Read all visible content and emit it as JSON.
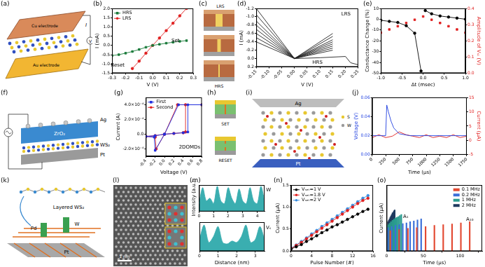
{
  "chart_data": [
    {
      "panel_label": "(b)",
      "type": "line",
      "xlabel": "V (V)",
      "ylabel": "I (mA)",
      "xlim": [
        -0.3,
        0.3
      ],
      "xticks": [
        -0.3,
        -0.2,
        -0.1,
        {
          "value": 0,
          "label": "0.0"
        },
        0.1,
        0.2,
        0.3
      ],
      "ylim": [
        -1.5,
        2.0
      ],
      "yticks": [
        -1.5,
        {
          "value": -1,
          "label": "-1.0"
        },
        -0.5,
        {
          "value": 0,
          "label": "0.0"
        },
        0.5,
        {
          "value": 1,
          "label": "1.0"
        },
        1.5,
        {
          "value": 2,
          "label": "2.0"
        }
      ],
      "grid": false,
      "legend": "upper left",
      "annotations": [
        "Set",
        "Reset"
      ],
      "series": [
        {
          "name": "HRS",
          "color": "#1a7a3a",
          "marker": "square",
          "x": [
            -0.3,
            -0.25,
            -0.2,
            -0.15,
            -0.1,
            -0.05,
            0,
            0.05,
            0.1,
            0.15,
            0.2,
            0.25
          ],
          "values": [
            -0.55,
            -0.5,
            -0.42,
            -0.33,
            -0.22,
            -0.1,
            0,
            0.06,
            0.12,
            0.17,
            0.22,
            0.26
          ]
        },
        {
          "name": "LRS",
          "color": "#e02020",
          "marker": "circle",
          "x": [
            -0.15,
            -0.1,
            -0.05,
            0,
            0.05,
            0.1,
            0.15,
            0.2,
            0.25
          ],
          "values": [
            -1.25,
            -0.85,
            -0.42,
            0,
            0.4,
            0.8,
            1.2,
            1.6,
            2.0
          ]
        }
      ]
    },
    {
      "panel_label": "(d)",
      "type": "line",
      "xlabel": "V (V)",
      "ylabel": "I (mA)",
      "xlim": [
        -0.15,
        0.25
      ],
      "xticks": [
        -0.15,
        {
          "value": -0.1,
          "label": "-0.10"
        },
        -0.05,
        {
          "value": 0,
          "label": "0.00"
        },
        0.05,
        {
          "value": 0.1,
          "label": "0.10"
        },
        0.15,
        {
          "value": 0.2,
          "label": "0.20"
        },
        0.25
      ],
      "ylim": [
        0.2,
        -1.2
      ],
      "yticks": [
        0.2,
        {
          "value": 0,
          "label": "0.0"
        },
        -0.2,
        -0.4,
        -0.6,
        -0.8,
        {
          "value": -1,
          "label": "-1.0"
        },
        -1.2
      ],
      "grid": false,
      "annotations": [
        "LRS",
        "HRS"
      ],
      "series": [
        {
          "color": "#222222",
          "x": [
            -0.15,
            0,
            0.15
          ],
          "values": [
            -1.2,
            0,
            -0.6
          ]
        },
        {
          "color": "#222222",
          "x": [
            -0.15,
            0,
            0.15
          ],
          "values": [
            -1.05,
            0,
            -0.53
          ]
        },
        {
          "color": "#222222",
          "x": [
            -0.15,
            0,
            0.15
          ],
          "values": [
            -0.9,
            0,
            -0.45
          ]
        },
        {
          "color": "#222222",
          "x": [
            -0.15,
            0,
            0.15
          ],
          "values": [
            -0.8,
            0,
            -0.4
          ]
        },
        {
          "color": "#222222",
          "x": [
            -0.15,
            0,
            0.15
          ],
          "values": [
            -0.7,
            0,
            -0.35
          ]
        },
        {
          "color": "#222222",
          "x": [
            -0.15,
            0,
            0.15
          ],
          "values": [
            -0.6,
            0,
            -0.3
          ]
        },
        {
          "color": "#222222",
          "x": [
            -0.15,
            0,
            0.15
          ],
          "values": [
            -0.5,
            0,
            -0.25
          ]
        },
        {
          "color": "#222222",
          "x": [
            -0.15,
            0,
            0.15
          ],
          "values": [
            -0.4,
            0,
            -0.2
          ]
        },
        {
          "color": "#222222",
          "x": [
            0,
            0.1,
            0.2,
            0.22,
            0.25
          ],
          "values": [
            0,
            -0.02,
            -0.05,
            0.1,
            0.15
          ]
        }
      ]
    },
    {
      "panel_label": "(e)",
      "type": "line",
      "xlabel": "Δt (msec)",
      "ylabel": "Conductance Change (%)",
      "y2label": "Amplitude of Vₛₜ (V)",
      "xlim": [
        -1,
        1
      ],
      "xticks": [
        {
          "value": -1,
          "label": "-1.0"
        },
        -0.5,
        {
          "value": 0,
          "label": "0.0"
        },
        0.5,
        {
          "value": 1,
          "label": "1.0"
        }
      ],
      "ylim": [
        -50,
        10
      ],
      "yticks": [
        -50,
        -40,
        -30,
        -20,
        -10,
        0,
        10
      ],
      "y2lim": [
        0,
        0.4
      ],
      "y2ticks": [
        {
          "value": 0,
          "label": "0.0"
        },
        0.1,
        0.2,
        0.3,
        0.4
      ],
      "grid": false,
      "series": [
        {
          "color": "#000000",
          "marker": "circle",
          "x": [
            -1,
            -0.8,
            -0.6,
            -0.4,
            -0.2,
            -0.05,
            0,
            0.05,
            0.2,
            0.4,
            0.6,
            0.8,
            1
          ],
          "values": [
            -1,
            -2,
            -3,
            -6,
            -13,
            -48,
            null,
            8,
            5,
            3,
            2,
            1,
            0
          ]
        },
        {
          "color": "#e02020",
          "marker": "square",
          "line_style": "none",
          "axis": "y2",
          "x": [
            -1,
            -0.8,
            -0.6,
            -0.4,
            -0.2,
            0,
            0.2,
            0.4,
            0.6,
            0.8,
            1
          ],
          "values": [
            0.25,
            0.27,
            0.29,
            0.31,
            0.33,
            0.35,
            0.33,
            0.31,
            0.29,
            0.27,
            0.25
          ]
        }
      ]
    },
    {
      "panel_label": "(g)",
      "type": "line",
      "xlabel": "Voltage (V)",
      "ylabel": "Current (A)",
      "xlim": [
        -0.4,
        0.8
      ],
      "xticks": [
        -0.4,
        -0.2,
        {
          "value": 0,
          "label": "0.0"
        },
        0.2,
        0.4,
        0.6,
        0.8
      ],
      "ylim": [
        -0.0003,
        0.0005
      ],
      "yticks": [
        {
          "value": -0.0002,
          "label": "-2.0×10⁻⁴"
        },
        {
          "value": 0,
          "label": "0.0"
        },
        {
          "value": 0.0002,
          "label": "2.0×10⁻⁴"
        },
        {
          "value": 0.0004,
          "label": "4.0×10⁻⁴"
        }
      ],
      "grid": false,
      "legend": "upper left",
      "annotations": [
        "2DOMDs"
      ],
      "series": [
        {
          "name": "First",
          "color": "#2030e0",
          "marker": "square",
          "x": [
            -0.4,
            -0.2,
            0,
            0.2,
            0.4,
            0.5,
            0.5,
            0.8,
            0.3,
            0,
            -0.2,
            -0.22,
            -0.4
          ],
          "values": [
            -3e-05,
            -2e-05,
            0,
            1e-05,
            2e-05,
            3e-05,
            0.0004,
            0.0004,
            0.0004,
            0,
            -0.00022,
            -4e-05,
            -3e-05
          ]
        },
        {
          "name": "Second",
          "color": "#e02020",
          "marker": "circle",
          "x": [
            -0.4,
            -0.2,
            0,
            0.2,
            0.4,
            0.45,
            0.45,
            0.8,
            0.28,
            0,
            -0.18,
            -0.2,
            -0.4
          ],
          "values": [
            -3e-05,
            -2e-05,
            0,
            1e-05,
            2e-05,
            3e-05,
            0.0004,
            0.0004,
            0.0004,
            0,
            -0.0002,
            -4e-05,
            -3e-05
          ]
        }
      ]
    },
    {
      "panel_label": "(j)",
      "type": "line",
      "xlabel": "Time (μs)",
      "ylabel": "Voltage (V)",
      "y2label": "Current (μA)",
      "xlim": [
        0,
        1750
      ],
      "xticks": [
        0,
        250,
        500,
        750,
        1000,
        1250,
        1500,
        1750
      ],
      "ylim": [
        0,
        0.06
      ],
      "yticks": [
        {
          "value": 0,
          "label": "0.00"
        },
        0.02,
        0.04,
        0.06
      ],
      "y2lim": [
        -5,
        15
      ],
      "y2ticks": [
        -5,
        0,
        5,
        10,
        15
      ],
      "grid": false,
      "series": [
        {
          "color": "#2040e0",
          "x": [
            0,
            100,
            200,
            250,
            270,
            300,
            350,
            400,
            500,
            700,
            1000,
            1250,
            1500,
            1750
          ],
          "values": [
            0.02,
            0.02,
            0.02,
            0.02,
            0.052,
            0.045,
            0.035,
            0.028,
            0.022,
            0.02,
            0.02,
            0.02,
            0.02,
            0.02
          ]
        },
        {
          "color": "#e02020",
          "axis": "y2",
          "x": [
            0,
            125,
            250,
            375,
            500,
            625,
            750,
            875,
            1000,
            1125,
            1250,
            1375,
            1500,
            1625,
            1750
          ],
          "values": [
            1,
            2,
            1,
            1.5,
            3,
            2,
            1.5,
            1,
            2,
            1,
            1.5,
            1,
            2,
            1,
            1.5
          ]
        }
      ]
    },
    {
      "panel_label": "(m)",
      "type": "area",
      "ylabel": "Intensity (a.u.)",
      "xlim": [
        0,
        4.5
      ],
      "xticks": [
        0,
        1,
        2,
        3,
        4
      ],
      "ylim": [
        0,
        1
      ],
      "tick_labels": "x",
      "grid": false,
      "annotations": [
        "W"
      ],
      "series": [
        {
          "color": "#3aaeb0",
          "x": [
            0,
            0.25,
            0.5,
            0.75,
            1,
            1.25,
            1.5,
            1.75,
            2,
            2.25,
            2.5,
            2.75,
            3,
            3.25,
            3.5,
            3.75,
            4,
            4.25,
            4.5
          ],
          "values": [
            0.3,
            0.9,
            0.4,
            0.5,
            0.3,
            0.95,
            0.4,
            0.3,
            0.9,
            0.5,
            0.3,
            0.85,
            0.4,
            0.3,
            0.9,
            0.4,
            0.3,
            0.95,
            0.4
          ]
        }
      ]
    },
    {
      "type": "area",
      "xlabel": "Distance (nm)",
      "xlim": [
        0,
        3.5
      ],
      "xticks": [
        0,
        1,
        2,
        3
      ],
      "ylim": [
        0,
        1
      ],
      "tick_labels": "x",
      "grid": false,
      "annotations": [
        "Vₛ"
      ],
      "series": [
        {
          "color": "#3aaeb0",
          "x": [
            0,
            0.25,
            0.5,
            0.75,
            1,
            1.25,
            1.5,
            1.75,
            2,
            2.25,
            2.5,
            2.75,
            3,
            3.25,
            3.5
          ],
          "values": [
            0.4,
            0.9,
            0.3,
            0.5,
            0.85,
            0.3,
            0.25,
            0.35,
            0.3,
            0.5,
            0.9,
            0.3,
            0.4,
            0.85,
            0.4
          ]
        }
      ]
    },
    {
      "panel_label": "(n)",
      "type": "line",
      "xlabel": "Pulse Number (#)",
      "ylabel": "Current (μA)",
      "xlim": [
        0,
        16
      ],
      "xticks": [
        0,
        4,
        8,
        12,
        16
      ],
      "ylim": [
        0,
        1.5
      ],
      "yticks": [
        {
          "value": 0,
          "label": "0.0"
        },
        0.5,
        {
          "value": 1,
          "label": "1.0"
        },
        1.5
      ],
      "grid": false,
      "legend": "upper left",
      "series": [
        {
          "name": "Vₛₑₜ=1 V",
          "color": "#000000",
          "marker": "circle",
          "x": [
            0,
            1,
            2,
            3,
            4,
            5,
            6,
            7,
            8,
            9,
            10,
            11,
            12,
            13,
            14,
            15
          ],
          "values": [
            0.05,
            0.1,
            0.15,
            0.22,
            0.28,
            0.35,
            0.42,
            0.48,
            0.55,
            0.6,
            0.66,
            0.72,
            0.78,
            0.84,
            0.9,
            0.95
          ]
        },
        {
          "name": "Vₛₑₜ=1.8 V",
          "color": "#e02020",
          "marker": "circle",
          "x": [
            0,
            1,
            2,
            3,
            4,
            5,
            6,
            7,
            8,
            9,
            10,
            11,
            12,
            13,
            14,
            15
          ],
          "values": [
            0.06,
            0.13,
            0.2,
            0.28,
            0.36,
            0.44,
            0.52,
            0.6,
            0.68,
            0.76,
            0.84,
            0.92,
            1.0,
            1.08,
            1.15,
            1.2
          ]
        },
        {
          "name": "Vₛₑₜ=2 V",
          "color": "#3a8ee0",
          "marker": "circle",
          "x": [
            0,
            1,
            2,
            3,
            4,
            5,
            6,
            7,
            8,
            9,
            10,
            11,
            12,
            13,
            14,
            15
          ],
          "values": [
            0.07,
            0.14,
            0.22,
            0.3,
            0.39,
            0.47,
            0.56,
            0.64,
            0.72,
            0.8,
            0.88,
            0.96,
            1.04,
            1.12,
            1.2,
            1.26
          ]
        }
      ]
    },
    {
      "panel_label": "(o)",
      "type": "bar",
      "xlabel": "Time (μs)",
      "ylabel": "Current (μA)",
      "xlim": [
        0,
        130
      ],
      "xticks": [
        0,
        50,
        100
      ],
      "ylim": [
        0,
        9
      ],
      "tick_labels": "x",
      "grid": false,
      "legend": "upper right",
      "annotations": [
        "A₁",
        "A₁₀"
      ],
      "series": [
        {
          "name": "0.1 MHz",
          "color": "#e34a33",
          "x": [
            5,
            17,
            29,
            41,
            53,
            65,
            77,
            89,
            101,
            113
          ],
          "values": [
            2.8,
            2.95,
            3.1,
            3.2,
            3.35,
            3.5,
            3.6,
            3.7,
            3.85,
            4.0
          ]
        },
        {
          "name": "0.2 MHz",
          "color": "#3b6fd8",
          "x": [
            2,
            7,
            12,
            17,
            22,
            27,
            32,
            37,
            42,
            47
          ],
          "values": [
            3.2,
            3.35,
            3.5,
            3.6,
            3.75,
            3.85,
            4.0,
            4.1,
            4.25,
            4.4
          ]
        },
        {
          "name": "1 MHz",
          "color": "#2a9d8f",
          "x": [
            2,
            4,
            6,
            8,
            10,
            12,
            14,
            16,
            18,
            20
          ],
          "values": [
            3.6,
            3.8,
            4.0,
            4.2,
            4.35,
            4.5,
            4.6,
            4.7,
            4.85,
            5.0
          ]
        },
        {
          "name": "2 MHz",
          "color": "#1f3a5f",
          "x": [
            2,
            3,
            4,
            5,
            6,
            7,
            8,
            9,
            10,
            11
          ],
          "values": [
            4.0,
            4.2,
            4.4,
            4.6,
            4.8,
            5.0,
            5.2,
            5.3,
            5.5,
            5.6
          ]
        }
      ]
    }
  ],
  "diagrams": [
    {
      "panel_label": "(a)",
      "top_electrode": "Cu electrode",
      "bottom_electrode": "Au electrode",
      "current": "I",
      "voltage": "V"
    },
    {
      "panel_label": "(c)",
      "top_state": "LRS",
      "bottom_state": "HRS"
    },
    {
      "panel_label": "(f)",
      "particles": "Ag",
      "oxide": "ZrO₂",
      "layer": "WS₂",
      "substrate": "Pt"
    },
    {
      "panel_label": "(h)",
      "upper": "SET",
      "lower": "RESET"
    },
    {
      "panel_label": "(i)",
      "top_electrode": "Ag",
      "bottom_electrode": "Pt",
      "atom_1": "S",
      "atom_2": "W"
    },
    {
      "panel_label": "(k)",
      "layer": "Layered WS₂",
      "pillar": "Pd",
      "atom": "W",
      "substrate": "Pt"
    },
    {
      "panel_label": "(l)",
      "scale_bar": "1 nm"
    }
  ]
}
